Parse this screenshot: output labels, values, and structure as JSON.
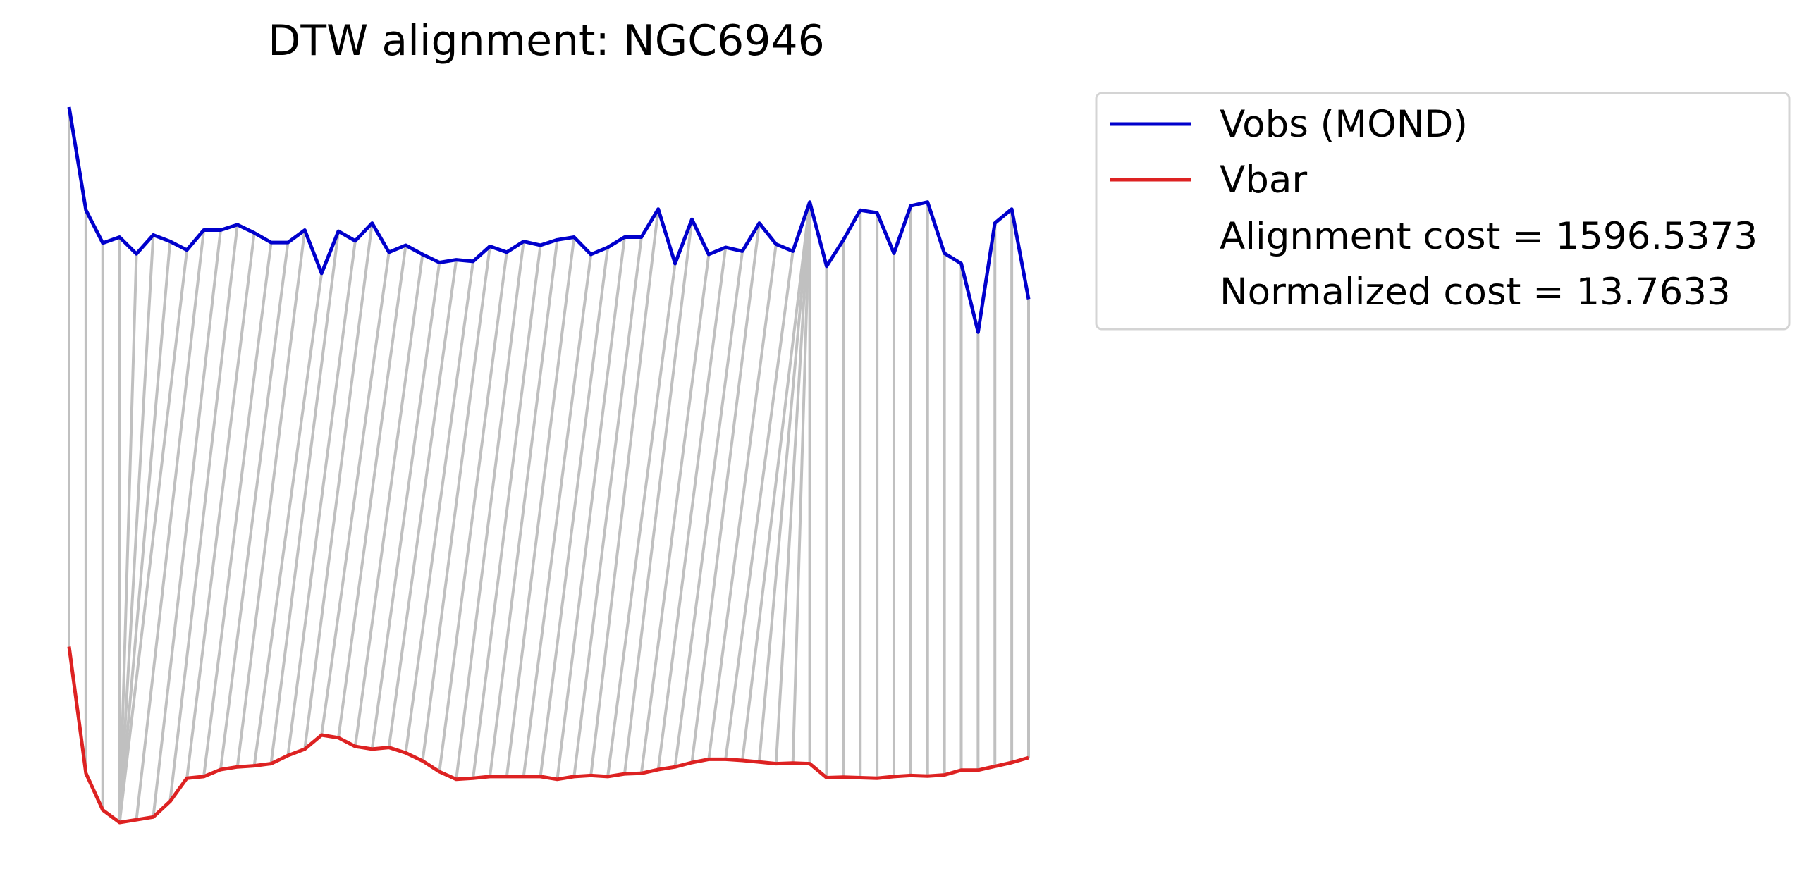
{
  "chart_data": {
    "type": "line",
    "title": "DTW alignment: NGC6946",
    "xlabel": "",
    "ylabel": "",
    "axes_visible": false,
    "grid": false,
    "legend_position": "outside-right-top",
    "colors": {
      "vobs": "#0000cc",
      "vbar": "#dd2222",
      "alignment": "#c0c0c0"
    },
    "series": [
      {
        "name": "Vobs (MOND)",
        "values": [
          100.0,
          80.9,
          74.8,
          75.9,
          72.8,
          76.3,
          75.1,
          73.5,
          77.2,
          77.2,
          78.2,
          76.7,
          74.9,
          74.9,
          77.2,
          69.2,
          77.0,
          75.2,
          78.5,
          73.1,
          74.4,
          72.7,
          71.2,
          71.7,
          71.4,
          74.2,
          73.1,
          75.1,
          74.4,
          75.4,
          75.9,
          72.7,
          74.0,
          75.9,
          75.9,
          81.1,
          71.0,
          79.2,
          72.7,
          74.0,
          73.3,
          78.5,
          74.6,
          73.3,
          82.4,
          70.5,
          75.4,
          80.9,
          80.4,
          72.9,
          81.7,
          82.4,
          72.9,
          71.0,
          58.3,
          78.5,
          81.1,
          64.4
        ],
        "endpoints_exact": true
      },
      {
        "name": "Vbar",
        "values": [
          0.0,
          -23.5,
          -30.3,
          -32.6,
          -32.1,
          -31.6,
          -28.7,
          -24.4,
          -24.1,
          -22.8,
          -22.3,
          -22.1,
          -21.7,
          -20.2,
          -19.0,
          -16.4,
          -16.9,
          -18.5,
          -19.0,
          -18.7,
          -19.7,
          -21.2,
          -23.2,
          -24.6,
          -24.4,
          -24.1,
          -24.1,
          -24.1,
          -24.1,
          -24.6,
          -24.1,
          -23.9,
          -24.1,
          -23.6,
          -23.5,
          -22.8,
          -22.3,
          -21.5,
          -20.9,
          -20.9,
          -21.1,
          -21.4,
          -21.7,
          -21.6,
          -21.7,
          -24.3,
          -24.2,
          -24.3,
          -24.4,
          -24.1,
          -23.9,
          -24.0,
          -23.8,
          -22.9,
          -22.9,
          -22.2,
          -21.5,
          -20.6
        ]
      }
    ],
    "alignment_path": [
      [
        0,
        0
      ],
      [
        1,
        1
      ],
      [
        2,
        2
      ],
      [
        3,
        3
      ],
      [
        4,
        3
      ],
      [
        5,
        3
      ],
      [
        6,
        3
      ],
      [
        7,
        3
      ],
      [
        8,
        4
      ],
      [
        9,
        5
      ],
      [
        10,
        6
      ],
      [
        11,
        7
      ],
      [
        12,
        8
      ],
      [
        13,
        9
      ],
      [
        14,
        10
      ],
      [
        15,
        11
      ],
      [
        16,
        12
      ],
      [
        17,
        13
      ],
      [
        18,
        14
      ],
      [
        19,
        15
      ],
      [
        20,
        16
      ],
      [
        21,
        17
      ],
      [
        22,
        18
      ],
      [
        23,
        19
      ],
      [
        24,
        20
      ],
      [
        25,
        21
      ],
      [
        26,
        22
      ],
      [
        27,
        23
      ],
      [
        28,
        24
      ],
      [
        29,
        25
      ],
      [
        30,
        26
      ],
      [
        31,
        27
      ],
      [
        32,
        28
      ],
      [
        33,
        29
      ],
      [
        34,
        30
      ],
      [
        35,
        31
      ],
      [
        36,
        32
      ],
      [
        37,
        33
      ],
      [
        38,
        34
      ],
      [
        39,
        35
      ],
      [
        40,
        36
      ],
      [
        41,
        37
      ],
      [
        42,
        38
      ],
      [
        43,
        39
      ],
      [
        44,
        40
      ],
      [
        44,
        41
      ],
      [
        44,
        42
      ],
      [
        44,
        43
      ],
      [
        44,
        44
      ],
      [
        45,
        45
      ],
      [
        46,
        46
      ],
      [
        47,
        47
      ],
      [
        48,
        48
      ],
      [
        49,
        49
      ],
      [
        50,
        50
      ],
      [
        51,
        51
      ],
      [
        52,
        52
      ],
      [
        53,
        53
      ],
      [
        54,
        54
      ],
      [
        55,
        55
      ],
      [
        56,
        56
      ],
      [
        57,
        57
      ]
    ],
    "annotations": [
      "Alignment cost = 1596.5373",
      "Normalized cost = 13.7633"
    ]
  }
}
